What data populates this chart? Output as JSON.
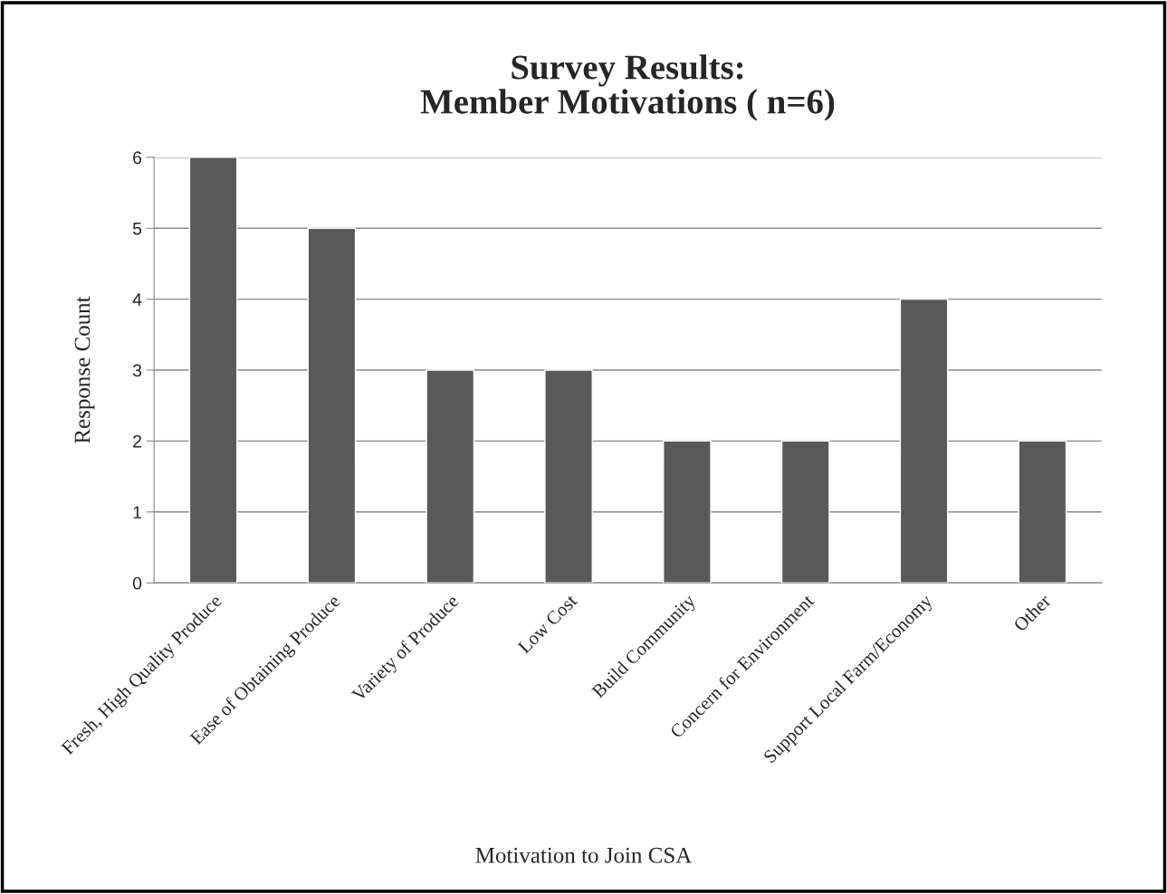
{
  "chart_data": {
    "type": "bar",
    "title": "Survey Results:\nMember Motivations ( n=6)",
    "xlabel": "Motivation to Join CSA",
    "ylabel": "Response Count",
    "categories": [
      "Fresh, High Quality Produce",
      "Ease of Obtaining Produce",
      "Variety of Produce",
      "Low Cost",
      "Build Community",
      "Concern for Environment",
      "Support Local Farm/Economy",
      "Other"
    ],
    "values": [
      6,
      5,
      3,
      3,
      2,
      2,
      4,
      2
    ],
    "color": "#595959",
    "ylim": [
      0,
      6
    ],
    "yticks": [
      0,
      1,
      2,
      3,
      4,
      5,
      6
    ],
    "grid": "y",
    "legend": false
  }
}
